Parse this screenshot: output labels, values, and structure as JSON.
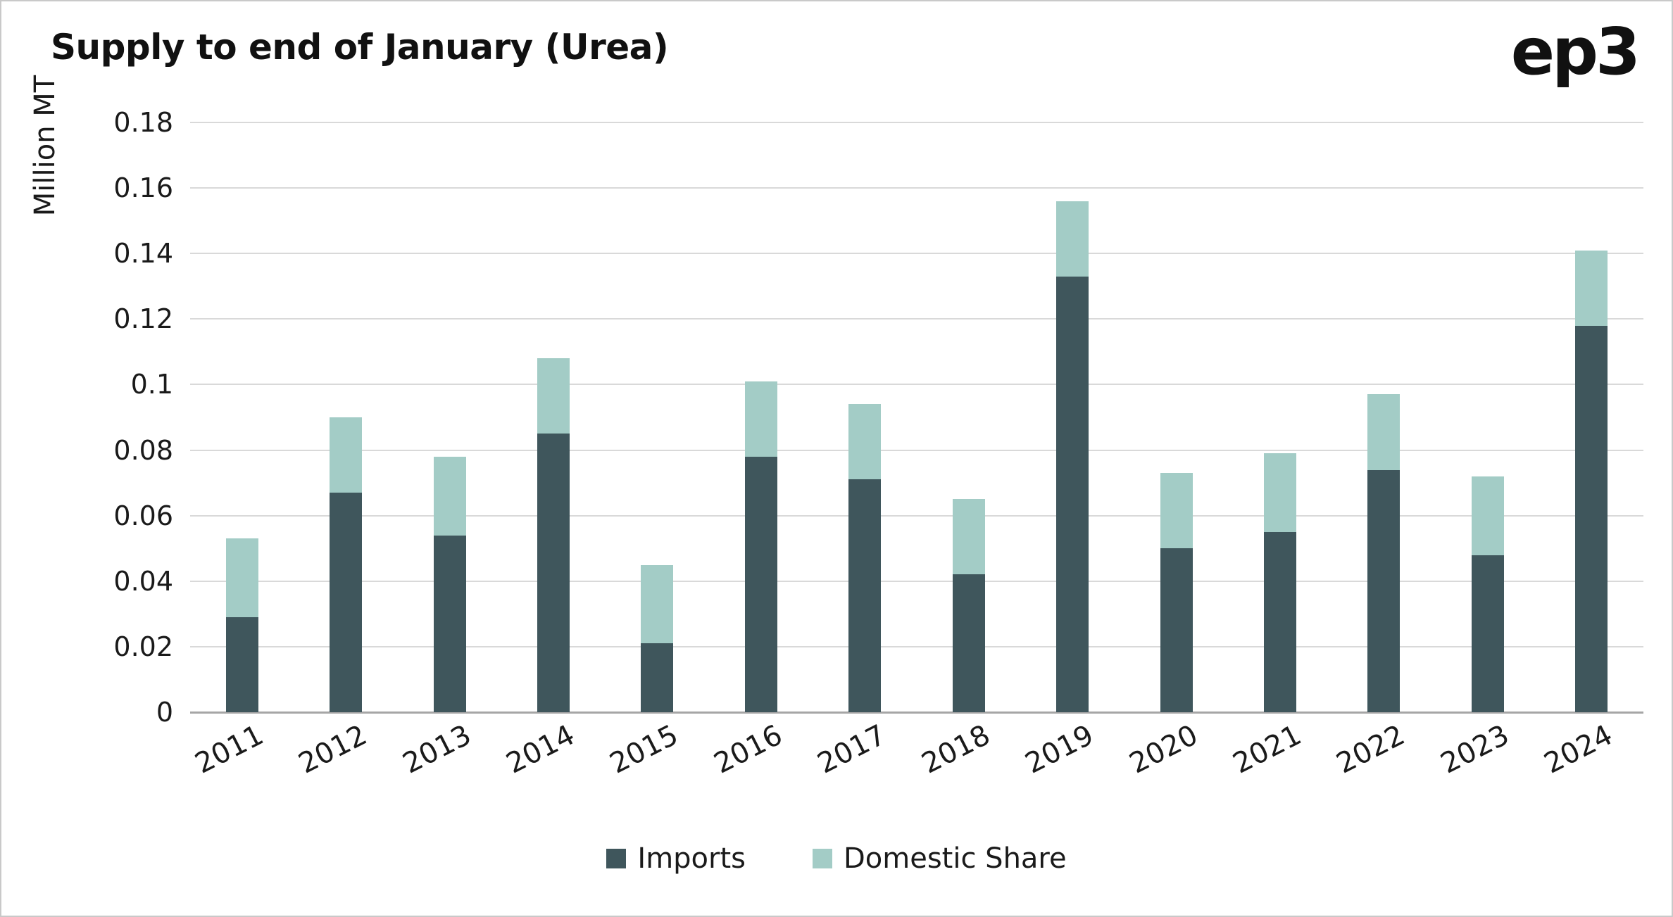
{
  "header": {
    "title": "Supply to end of January (Urea)",
    "logo": "ep3"
  },
  "chart_data": {
    "type": "bar",
    "stacked": true,
    "title": "Supply to end of January (Urea)",
    "ylabel": "Million MT",
    "xlabel": "",
    "ylim": [
      0,
      0.18
    ],
    "ytick_step": 0.02,
    "ytick_labels": [
      "0",
      "0.02",
      "0.04",
      "0.06",
      "0.08",
      "0.1",
      "0.12",
      "0.14",
      "0.16",
      "0.18"
    ],
    "grid": true,
    "legend_position": "bottom",
    "categories": [
      "2011",
      "2012",
      "2013",
      "2014",
      "2015",
      "2016",
      "2017",
      "2018",
      "2019",
      "2020",
      "2021",
      "2022",
      "2023",
      "2024"
    ],
    "series": [
      {
        "name": "Imports",
        "color": "#3f565c",
        "values": [
          0.029,
          0.067,
          0.054,
          0.085,
          0.021,
          0.078,
          0.071,
          0.042,
          0.133,
          0.05,
          0.055,
          0.074,
          0.048,
          0.118
        ]
      },
      {
        "name": "Domestic Share",
        "color": "#a3ccc6",
        "values": [
          0.024,
          0.023,
          0.024,
          0.023,
          0.024,
          0.023,
          0.023,
          0.023,
          0.023,
          0.023,
          0.024,
          0.023,
          0.024,
          0.023
        ]
      }
    ]
  }
}
